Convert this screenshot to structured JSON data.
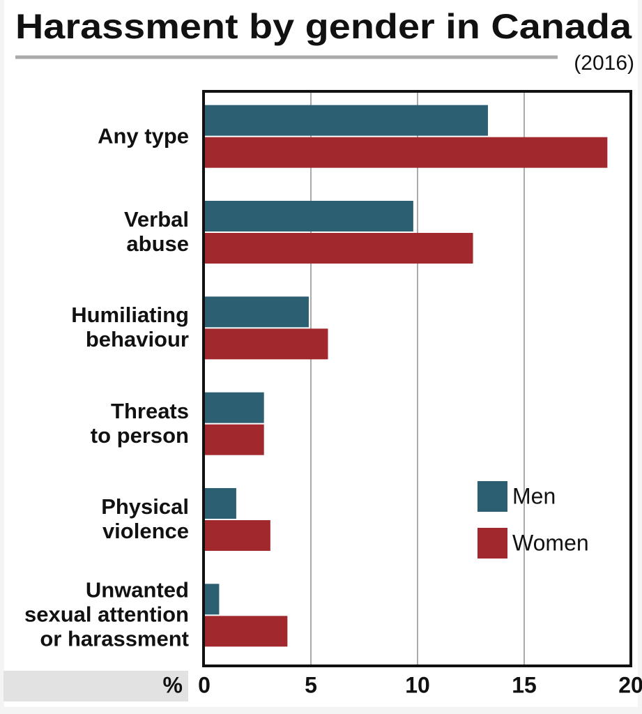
{
  "chart_data": {
    "type": "bar",
    "orientation": "horizontal",
    "title": "Harassment by gender in Canada",
    "subtitle": "(2016)",
    "x_label": "%",
    "categories": [
      "Any type",
      "Verbal\nabuse",
      "Humiliating\nbehaviour",
      "Threats\nto person",
      "Physical\nviolence",
      "Unwanted\nsexual attention\nor harassment"
    ],
    "series": [
      {
        "name": "Men",
        "color": "#2b5f71",
        "values": [
          13.3,
          9.8,
          4.9,
          2.8,
          1.5,
          0.7
        ]
      },
      {
        "name": "Women",
        "color": "#a1282d",
        "values": [
          18.9,
          12.6,
          5.8,
          2.8,
          3.1,
          3.9
        ]
      }
    ],
    "xlim": [
      0,
      20
    ],
    "xticks": [
      0,
      5,
      10,
      15,
      20
    ],
    "grid": true,
    "legend": "lower right"
  }
}
